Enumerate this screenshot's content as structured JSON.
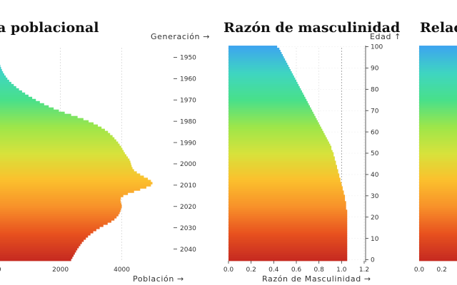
{
  "titles": {
    "left": "ra poblacional",
    "middle": "Razón de masculinidad",
    "right": "Relac"
  },
  "axis_labels": {
    "generation": "Generación →",
    "population": "Población →",
    "sex_ratio": "Razón de Masculinidad →",
    "age": "Edad ↑"
  },
  "colors": {
    "gradient_by_age": [
      "#c62a20",
      "#e8521f",
      "#f8912a",
      "#fbc02d",
      "#d7e23b",
      "#9de64a",
      "#49e08a",
      "#3fd6c0",
      "#3da6ee"
    ]
  },
  "chart_data": [
    {
      "type": "bar",
      "orientation": "horizontal",
      "title": "ra poblacional",
      "xlabel": "Población",
      "ylabel": "Generación",
      "xlim": [
        -900,
        5500
      ],
      "x_ticks": [
        0,
        2000,
        4000
      ],
      "y_ticks": [
        1950,
        1960,
        1970,
        1980,
        1990,
        2000,
        2010,
        2020,
        2030,
        2040
      ],
      "categories_age": [
        0,
        100
      ],
      "series": [
        {
          "values_by_age": [
            2350,
            2390,
            2430,
            2470,
            2510,
            2550,
            2600,
            2650,
            2700,
            2760,
            2830,
            2900,
            2980,
            3070,
            3170,
            3280,
            3400,
            3540,
            3660,
            3760,
            3830,
            3890,
            3930,
            3960,
            3980,
            4000,
            3990,
            3970,
            3960,
            3970,
            4050,
            4200,
            4400,
            4600,
            4800,
            4950,
            5000,
            4950,
            4850,
            4720,
            4600,
            4490,
            4400,
            4350,
            4320,
            4300,
            4280,
            4250,
            4200,
            4150,
            4100,
            4060,
            4020,
            3980,
            3930,
            3880,
            3820,
            3760,
            3700,
            3620,
            3550,
            3450,
            3340,
            3220,
            3080,
            2920,
            2750,
            2560,
            2350,
            2140,
            1950,
            1780,
            1620,
            1470,
            1330,
            1200,
            1080,
            960,
            850,
            750,
            650,
            560,
            480,
            400,
            330,
            270,
            220,
            170,
            130,
            95,
            65,
            42,
            25,
            14,
            8,
            5,
            3,
            2,
            1,
            1,
            0
          ]
        }
      ]
    },
    {
      "type": "bar",
      "orientation": "horizontal",
      "title": "Razón de masculinidad",
      "xlabel": "Razón de Masculinidad",
      "ylabel": "Edad",
      "xlim": [
        0,
        1.2
      ],
      "x_ticks": [
        0.0,
        0.2,
        0.4,
        0.6,
        0.8,
        1.0,
        1.2
      ],
      "y_ticks": [
        0,
        10,
        20,
        30,
        40,
        50,
        60,
        70,
        80,
        90,
        100
      ],
      "series": [
        {
          "values_by_age": [
            1.05,
            1.05,
            1.05,
            1.05,
            1.05,
            1.05,
            1.05,
            1.05,
            1.05,
            1.05,
            1.05,
            1.05,
            1.05,
            1.05,
            1.05,
            1.05,
            1.05,
            1.05,
            1.05,
            1.05,
            1.05,
            1.05,
            1.05,
            1.05,
            1.04,
            1.04,
            1.04,
            1.04,
            1.03,
            1.03,
            1.03,
            1.02,
            1.02,
            1.01,
            1.01,
            1.0,
            1.0,
            0.99,
            0.99,
            0.98,
            0.98,
            0.97,
            0.97,
            0.96,
            0.96,
            0.95,
            0.95,
            0.94,
            0.94,
            0.93,
            0.93,
            0.92,
            0.91,
            0.91,
            0.9,
            0.89,
            0.88,
            0.87,
            0.86,
            0.85,
            0.84,
            0.83,
            0.82,
            0.81,
            0.8,
            0.79,
            0.78,
            0.77,
            0.76,
            0.75,
            0.74,
            0.73,
            0.72,
            0.71,
            0.7,
            0.69,
            0.68,
            0.67,
            0.66,
            0.65,
            0.64,
            0.63,
            0.62,
            0.61,
            0.6,
            0.59,
            0.58,
            0.57,
            0.56,
            0.55,
            0.54,
            0.53,
            0.52,
            0.51,
            0.5,
            0.49,
            0.48,
            0.47,
            0.46,
            0.45,
            0.43
          ]
        }
      ]
    },
    {
      "type": "bar",
      "orientation": "horizontal",
      "title": "Relac",
      "xlim": [
        0,
        1.2
      ],
      "x_ticks": [
        0.0,
        0.2
      ],
      "series": [
        {
          "values_by_age": "truncated at image edge"
        }
      ]
    }
  ]
}
